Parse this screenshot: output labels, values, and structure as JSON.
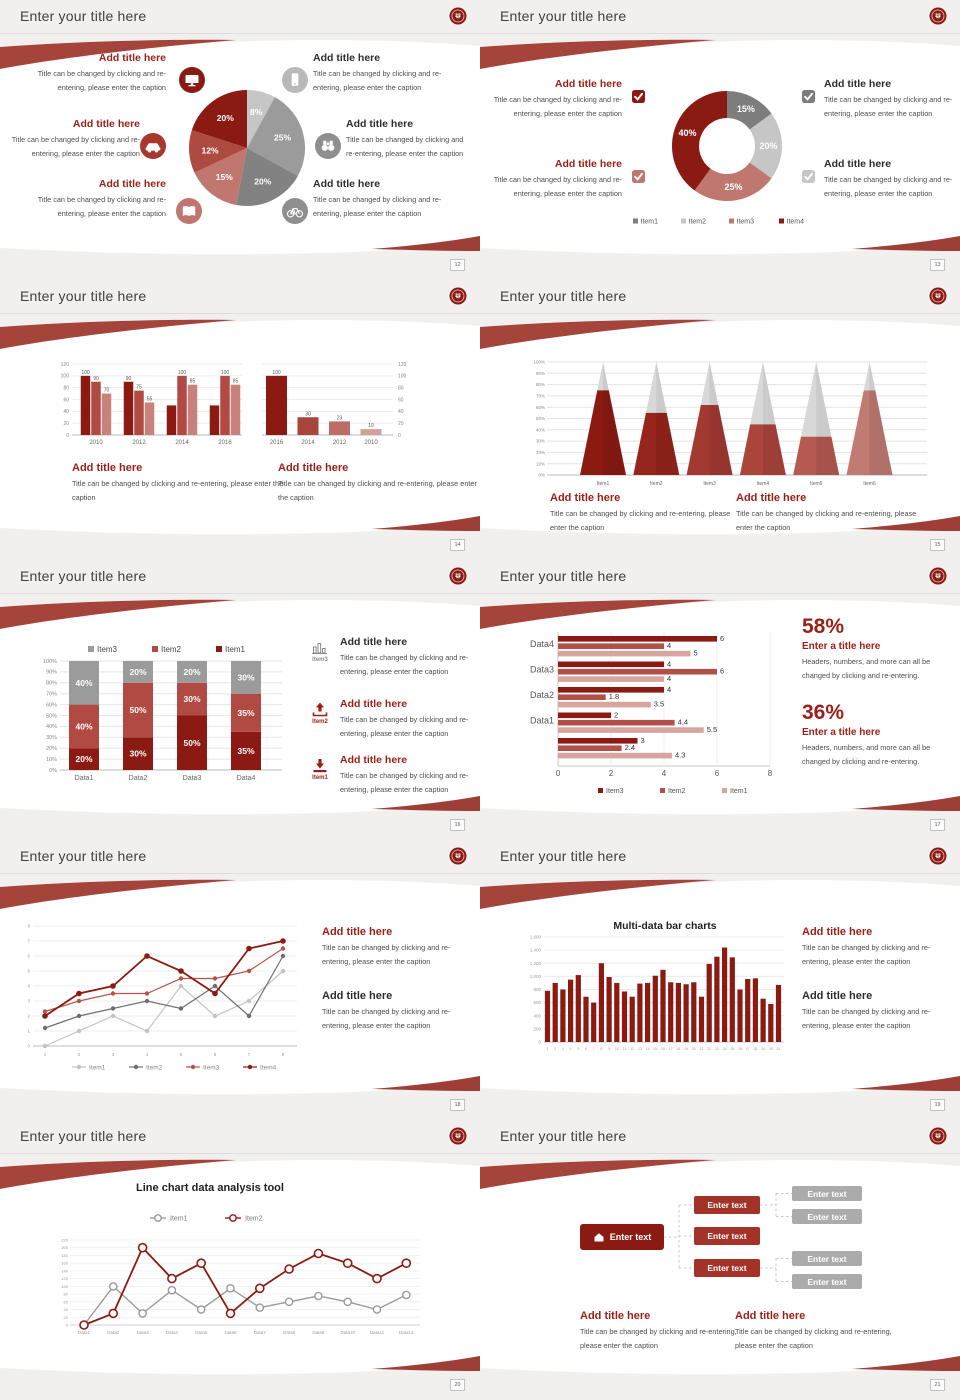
{
  "theme": {
    "accent": "#8b1a12",
    "accent_mid": "#b04a42",
    "accent_rose": "#c0776f",
    "gray": "#9b9b9b",
    "slide_bg": "#f1f0ee"
  },
  "slides": [
    {
      "title": "Enter your title here",
      "page": "12",
      "icons": [
        "monitor-icon",
        "smartphone-icon",
        "car-icon",
        "binoculars-icon",
        "book-icon",
        "bicycle-icon"
      ],
      "blocks": [
        {
          "title": "Add title here",
          "caption": "Title can be changed by clicking and re-entering, please enter the caption"
        },
        {
          "title": "Add title here",
          "caption": "Title can be changed by clicking and re-entering, please enter the caption"
        },
        {
          "title": "Add title here",
          "caption": "Title can be changed by clicking and re-entering, please enter the caption"
        },
        {
          "title": "Add title here",
          "caption": "Title can be changed by clicking and re-entering, please enter the caption"
        },
        {
          "title": "Add title here",
          "caption": "Title can be changed by clicking and re-entering, please enter the caption"
        },
        {
          "title": "Add title here",
          "caption": "Title can be changed by clicking and re-entering, please enter the caption"
        }
      ]
    },
    {
      "title": "Enter your title here",
      "page": "13",
      "icons": [
        "check-icon",
        "check-icon",
        "check-icon",
        "check-icon"
      ],
      "blocks": [
        {
          "title": "Add title here",
          "caption": "Title can be changed by clicking and re-entering, please enter the caption"
        },
        {
          "title": "Add title here",
          "caption": "Title can be changed by clicking and re-entering, please enter the caption"
        },
        {
          "title": "Add title here",
          "caption": "Title can be changed by clicking and re-entering, please enter the caption"
        },
        {
          "title": "Add title here",
          "caption": "Title can be changed by clicking and re-entering, please enter the caption"
        }
      ]
    },
    {
      "title": "Enter your title here",
      "page": "14",
      "blocks": [
        {
          "title": "Add title here",
          "caption": "Title can be changed by clicking and re-entering, please enter the caption"
        },
        {
          "title": "Add title here",
          "caption": "Title can be changed by clicking and re-entering, please enter the caption"
        }
      ]
    },
    {
      "title": "Enter your title here",
      "page": "15",
      "blocks": [
        {
          "title": "Add title here",
          "caption": "Title can be changed by clicking and re-entering, please enter the caption"
        },
        {
          "title": "Add title here",
          "caption": "Title can be changed by clicking and re-entering, please enter the caption"
        }
      ]
    },
    {
      "title": "Enter your title here",
      "page": "16",
      "blocks": [
        {
          "item": "Item3",
          "title": "Add title here",
          "caption": "Title can be changed by clicking and re-entering, please enter the caption"
        },
        {
          "item": "Item2",
          "title": "Add title here",
          "caption": "Title can be changed by clicking and re-entering, please enter the caption"
        },
        {
          "item": "Item1",
          "title": "Add title here",
          "caption": "Title can be changed by clicking and re-entering, please enter the caption"
        }
      ]
    },
    {
      "title": "Enter your title here",
      "page": "17",
      "stats": [
        {
          "value": "58%",
          "title": "Enter a title here",
          "caption": "Headers, numbers, and more can all be changed by clicking and re-entering."
        },
        {
          "value": "36%",
          "title": "Enter a title here",
          "caption": "Headers, numbers, and more can all be changed by clicking and re-entering."
        }
      ]
    },
    {
      "title": "Enter your title here",
      "page": "18",
      "blocks": [
        {
          "title": "Add title here",
          "caption": "Title can be changed by clicking and re-entering, please enter the caption"
        },
        {
          "title": "Add title here",
          "caption": "Title can be changed by clicking and re-entering, please enter the caption"
        }
      ]
    },
    {
      "title": "Enter your title here",
      "page": "19",
      "blocks": [
        {
          "title": "Add title here",
          "caption": "Title can be changed by clicking and re-entering, please enter the caption"
        },
        {
          "title": "Add title here",
          "caption": "Title can be changed by clicking and re-entering, please enter the caption"
        }
      ]
    },
    {
      "title": "Enter your title here",
      "page": "20"
    },
    {
      "title": "Enter your title here",
      "page": "21",
      "org": {
        "root": "Enter text",
        "mid": [
          "Enter text",
          "Enter text",
          "Enter text"
        ],
        "leaf": [
          "Enter text",
          "Enter text",
          "Enter text",
          "Enter text"
        ]
      },
      "blocks": [
        {
          "title": "Add title here",
          "caption": "Title can be changed by clicking and re-entering, please enter the caption"
        },
        {
          "title": "Add title here",
          "caption": "Title can be changed by clicking and re-entering, please enter the caption"
        }
      ]
    }
  ],
  "chart_data": [
    {
      "type": "pie",
      "labels": [
        "8%",
        "25%",
        "20%",
        "15%",
        "12%",
        "20%"
      ],
      "values": [
        8,
        25,
        20,
        15,
        12,
        20
      ],
      "colors": [
        "#c6c6c6",
        "#9b9b9b",
        "#828282",
        "#c0776f",
        "#ad4a41",
        "#8b1a12"
      ],
      "start": "top-clockwise"
    },
    {
      "type": "pie",
      "donut": true,
      "labels": [
        "15%",
        "20%",
        "25%",
        "40%"
      ],
      "values": [
        15,
        20,
        25,
        40
      ],
      "colors": [
        "#7d7d7d",
        "#c6c6c6",
        "#c0776f",
        "#8b1a12"
      ],
      "legend": [
        "Item1",
        "Item2",
        "Item3",
        "Item4"
      ],
      "legend_position": "bottom"
    },
    {
      "type": "bar",
      "categories": [
        "2010",
        "2012",
        "2014",
        "2016"
      ],
      "series": [
        {
          "name": "series1",
          "values": [
            100,
            90,
            50,
            50
          ]
        },
        {
          "name": "series2",
          "values": [
            90,
            75,
            100,
            100
          ]
        },
        {
          "name": "series3",
          "values": [
            70,
            55,
            85,
            85
          ]
        }
      ],
      "colors": [
        "#8b1a12",
        "#b04a42",
        "#c9827b"
      ],
      "ylim": [
        0,
        120
      ],
      "yticks": [
        0,
        20,
        40,
        60,
        80,
        100,
        120
      ],
      "bar_labels": [
        [
          "100",
          "90",
          "",
          ""
        ],
        [
          "90",
          "75",
          "100",
          "100"
        ],
        [
          "70",
          "55",
          "85",
          "85"
        ]
      ]
    },
    {
      "type": "bar",
      "categories": [
        "2016",
        "2014",
        "2012",
        "2010"
      ],
      "values": [
        100,
        30,
        23,
        10
      ],
      "colors": [
        "#8b1a12",
        "#a8453c",
        "#bc6d65",
        "#d0a19b"
      ],
      "ylim": [
        0,
        120
      ],
      "yticks": [
        0,
        20,
        40,
        60,
        80,
        100,
        120
      ],
      "axis_side": "right"
    },
    {
      "type": "pyramid",
      "categories": [
        "Item1",
        "Item2",
        "Item3",
        "Item4",
        "Item5",
        "Item6"
      ],
      "values": [
        75,
        55,
        62,
        45,
        34,
        75
      ],
      "unit": "%",
      "ylim": [
        0,
        100
      ],
      "yticks_step": 10,
      "colors": [
        "#8b1a12",
        "#96251d",
        "#a23a31",
        "#ab453c",
        "#b65a51",
        "#c07b73"
      ],
      "cap_color": "#d8d8d8"
    },
    {
      "type": "bar-stacked",
      "categories": [
        "Data1",
        "Data2",
        "Data3",
        "Data4"
      ],
      "series": [
        {
          "name": "Item1",
          "values": [
            20,
            30,
            50,
            35
          ],
          "color": "#8b1a12"
        },
        {
          "name": "Item2",
          "values": [
            40,
            50,
            30,
            35
          ],
          "color": "#b04a42"
        },
        {
          "name": "Item3",
          "values": [
            40,
            20,
            20,
            30
          ],
          "color": "#9b9b9b"
        }
      ],
      "unit": "%",
      "ylim": [
        0,
        100
      ],
      "legend_order": [
        "Item3",
        "Item2",
        "Item1"
      ],
      "legend_position": "top"
    },
    {
      "type": "bar-horizontal",
      "categories": [
        "Data4",
        "Data3",
        "Data2",
        "Data1",
        ""
      ],
      "series": [
        {
          "name": "Item3",
          "values": [
            6,
            4,
            4,
            2,
            3
          ],
          "color": "#8b1a12"
        },
        {
          "name": "Item2",
          "values": [
            4,
            6,
            1.8,
            4.4,
            2.4
          ],
          "color": "#b05048"
        },
        {
          "name": "Item1",
          "values": [
            5,
            4,
            3.5,
            5.5,
            4.3
          ],
          "color": "#d8a59e"
        }
      ],
      "xlim": [
        0,
        8
      ],
      "xticks": [
        0,
        2,
        4,
        6,
        8
      ],
      "legend_position": "bottom"
    },
    {
      "type": "line",
      "x": [
        1,
        2,
        3,
        4,
        5,
        6,
        7,
        8
      ],
      "series": [
        {
          "name": "Item1",
          "values": [
            0,
            1,
            2,
            1,
            4,
            2,
            3,
            5
          ],
          "color": "#c3c3c3"
        },
        {
          "name": "Item2",
          "values": [
            1.2,
            2,
            2.5,
            3,
            2.5,
            4,
            2,
            6
          ],
          "color": "#6e6e6e"
        },
        {
          "name": "Item3",
          "values": [
            2.3,
            3,
            3.5,
            3.5,
            4.5,
            4.5,
            5,
            6.5
          ],
          "color": "#b5544b"
        },
        {
          "name": "Item4",
          "values": [
            2,
            3.5,
            4,
            6,
            5,
            3.5,
            6.5,
            7
          ],
          "color": "#8b1a12"
        }
      ],
      "ylim": [
        0,
        8
      ],
      "grid": true,
      "legend_position": "bottom"
    },
    {
      "type": "bar",
      "title": "Multi-data bar charts",
      "categories": [
        "1",
        "2",
        "3",
        "4",
        "5",
        "6",
        "7",
        "8",
        "9",
        "10",
        "11",
        "12",
        "13",
        "14",
        "15",
        "16",
        "17",
        "18",
        "19",
        "20",
        "21",
        "22",
        "23",
        "24",
        "25",
        "26",
        "27",
        "28",
        "29",
        "30",
        "31"
      ],
      "values": [
        780,
        900,
        800,
        950,
        1020,
        690,
        600,
        1200,
        990,
        900,
        770,
        690,
        890,
        900,
        1010,
        1100,
        910,
        900,
        880,
        910,
        690,
        1190,
        1300,
        1440,
        1290,
        800,
        960,
        970,
        660,
        580,
        870
      ],
      "color": "#8b1a12",
      "ylim": [
        0,
        1600
      ],
      "yticks": [
        0,
        200,
        400,
        600,
        800,
        1000,
        1200,
        1400,
        1600
      ]
    },
    {
      "type": "line",
      "title": "Line chart data analysis tool",
      "categories": [
        "Data1",
        "Data2",
        "Data3",
        "Data4",
        "Data5",
        "Data6",
        "Data7",
        "Data8",
        "Data9",
        "Data10",
        "Data11",
        "Data12"
      ],
      "series": [
        {
          "name": "Item1",
          "values": [
            0,
            100,
            30,
            90,
            40,
            95,
            45,
            60,
            75,
            60,
            40,
            78
          ],
          "color": "#9a9a9a"
        },
        {
          "name": "Item2",
          "values": [
            0,
            30,
            200,
            120,
            160,
            30,
            95,
            145,
            185,
            160,
            120,
            160
          ],
          "color": "#8b1a12"
        }
      ],
      "ylim": [
        0,
        220
      ],
      "yticks_step": 20,
      "legend_position": "top",
      "marker": "open-circle"
    }
  ]
}
